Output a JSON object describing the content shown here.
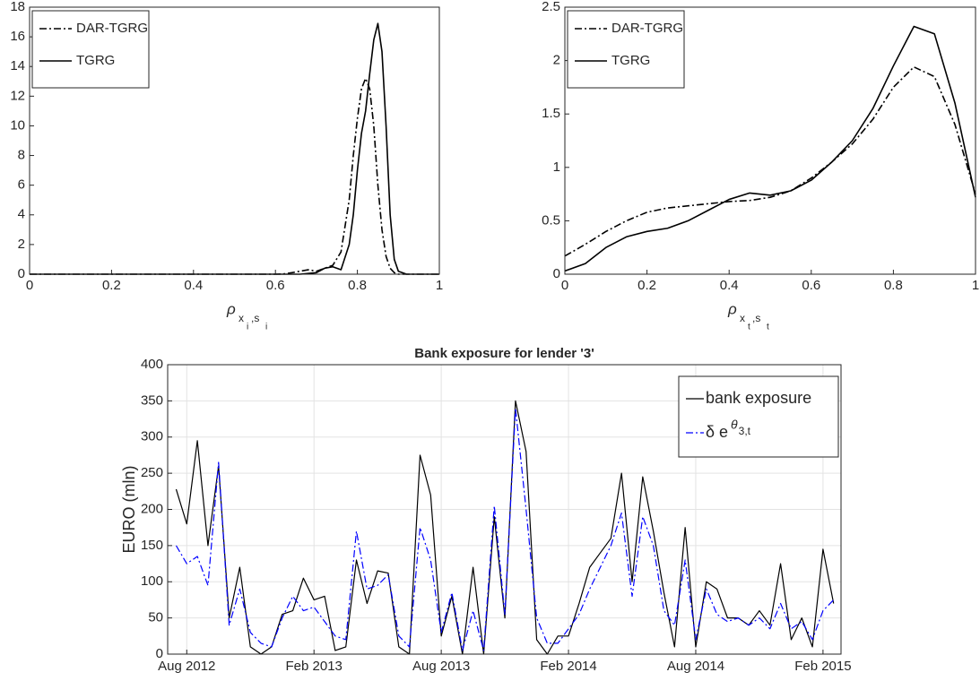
{
  "chart_data": [
    {
      "type": "line",
      "xlabel": [
        "ρ",
        "x",
        "i",
        ",s",
        "i"
      ],
      "x": [
        0,
        0.2,
        0.4,
        0.5,
        0.6,
        0.62,
        0.64,
        0.66,
        0.68,
        0.7,
        0.72,
        0.74,
        0.76,
        0.78,
        0.79,
        0.8,
        0.81,
        0.82,
        0.83,
        0.84,
        0.85,
        0.86,
        0.87,
        0.88,
        0.89,
        0.9,
        0.92,
        0.95,
        1
      ],
      "series": [
        {
          "name": "DAR-TGRG",
          "color": "#000000",
          "linestyle": "dashdot",
          "values": [
            0,
            0,
            0,
            0,
            0,
            0.02,
            0.1,
            0.2,
            0.3,
            0.2,
            0.4,
            0.6,
            1.5,
            5,
            8,
            10.5,
            12.5,
            13.2,
            12.5,
            10,
            6,
            3,
            1.2,
            0.4,
            0.1,
            0,
            0,
            0,
            0
          ]
        },
        {
          "name": "TGRG",
          "color": "#000000",
          "linestyle": "solid",
          "values": [
            0,
            0,
            0,
            0,
            0,
            0,
            0,
            0,
            0.05,
            0.1,
            0.4,
            0.5,
            0.3,
            2,
            4,
            7,
            9.5,
            11,
            13.5,
            15.8,
            16.9,
            15,
            10,
            4,
            1,
            0.2,
            0,
            0,
            0
          ]
        }
      ],
      "xlim": [
        0,
        1
      ],
      "xticks": [
        0,
        0.2,
        0.4,
        0.6,
        0.8,
        1
      ],
      "ylim": [
        0,
        18
      ],
      "yticks": [
        0,
        2,
        4,
        6,
        8,
        10,
        12,
        14,
        16,
        18
      ],
      "grid": false,
      "legend": "upper left"
    },
    {
      "type": "line",
      "xlabel": [
        "ρ",
        "x",
        "t",
        ",s",
        "t"
      ],
      "x": [
        0,
        0.05,
        0.1,
        0.15,
        0.2,
        0.25,
        0.3,
        0.35,
        0.4,
        0.45,
        0.5,
        0.55,
        0.6,
        0.65,
        0.7,
        0.75,
        0.8,
        0.85,
        0.9,
        0.95,
        1
      ],
      "series": [
        {
          "name": "DAR-TGRG",
          "color": "#000000",
          "linestyle": "dashdot",
          "values": [
            0.17,
            0.28,
            0.4,
            0.5,
            0.58,
            0.62,
            0.64,
            0.66,
            0.68,
            0.69,
            0.72,
            0.78,
            0.9,
            1.05,
            1.22,
            1.45,
            1.75,
            1.94,
            1.85,
            1.4,
            0.75
          ]
        },
        {
          "name": "TGRG",
          "color": "#000000",
          "linestyle": "solid",
          "values": [
            0.03,
            0.1,
            0.25,
            0.35,
            0.4,
            0.43,
            0.5,
            0.6,
            0.7,
            0.76,
            0.74,
            0.78,
            0.88,
            1.05,
            1.25,
            1.55,
            1.95,
            2.32,
            2.25,
            1.6,
            0.72
          ]
        }
      ],
      "xlim": [
        0,
        1
      ],
      "xticks": [
        0,
        0.2,
        0.4,
        0.6,
        0.8,
        1
      ],
      "ylim": [
        0,
        2.5
      ],
      "yticks": [
        0,
        0.5,
        1,
        1.5,
        2,
        2.5
      ],
      "grid": false,
      "legend": "upper left"
    },
    {
      "type": "line",
      "title": "Bank exposure for lender '3'",
      "ylabel": "EURO (mln)",
      "categories": [
        null,
        "Aug 2012",
        null,
        null,
        null,
        null,
        null,
        null,
        null,
        null,
        null,
        null,
        null,
        "Feb 2013",
        null,
        null,
        null,
        null,
        null,
        null,
        null,
        null,
        null,
        null,
        null,
        "Aug 2013",
        null,
        null,
        null,
        null,
        null,
        null,
        null,
        null,
        null,
        null,
        null,
        "Feb 2014",
        null,
        null,
        null,
        null,
        null,
        null,
        null,
        null,
        null,
        null,
        null,
        "Aug 2014",
        null,
        null,
        null,
        null,
        null,
        null,
        null,
        null,
        null,
        null,
        null,
        "Feb 2015",
        null
      ],
      "series": [
        {
          "name": "bank exposure",
          "color": "#000000",
          "linestyle": "solid",
          "values": [
            228,
            180,
            295,
            150,
            260,
            50,
            120,
            10,
            0,
            10,
            55,
            60,
            105,
            75,
            80,
            5,
            10,
            130,
            70,
            115,
            112,
            10,
            0,
            275,
            220,
            25,
            80,
            0,
            120,
            0,
            190,
            50,
            350,
            280,
            20,
            0,
            25,
            25,
            70,
            120,
            140,
            160,
            250,
            100,
            245,
            170,
            85,
            10,
            175,
            10,
            100,
            90,
            50,
            50,
            40,
            60,
            40,
            125,
            20,
            50,
            10,
            145,
            70
          ]
        },
        {
          "name": "δ e",
          "name_superscript": "θ",
          "name_subscript": "3,t",
          "color": "#0000ff",
          "linestyle": "dashdot",
          "values": [
            150,
            125,
            135,
            95,
            265,
            40,
            90,
            30,
            15,
            10,
            50,
            80,
            60,
            65,
            45,
            25,
            20,
            170,
            90,
            95,
            110,
            25,
            10,
            175,
            130,
            30,
            85,
            5,
            60,
            5,
            205,
            55,
            340,
            200,
            50,
            15,
            15,
            35,
            55,
            90,
            120,
            150,
            195,
            80,
            190,
            150,
            60,
            40,
            130,
            20,
            90,
            55,
            45,
            50,
            40,
            50,
            35,
            70,
            35,
            45,
            20,
            60,
            75
          ]
        }
      ],
      "ylim": [
        0,
        400
      ],
      "yticks": [
        0,
        50,
        100,
        150,
        200,
        250,
        300,
        350,
        400
      ],
      "grid": true,
      "legend": "upper right"
    }
  ]
}
